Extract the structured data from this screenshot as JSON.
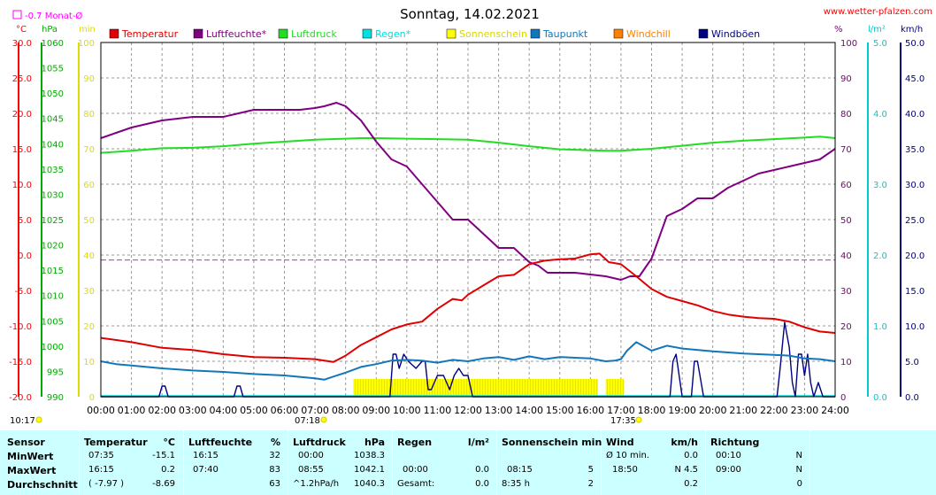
{
  "header": {
    "title": "Sonntag, 14.02.2021",
    "site": "www.wetter-pfalzen.com",
    "month_avg_label": "-0.7 Monat-Ø",
    "month_avg_value": -0.7
  },
  "axis_units": {
    "celsius": "°C",
    "hpa": "hPa",
    "min": "min",
    "percent": "%",
    "rain": "l/m²",
    "wind": "km/h"
  },
  "colors": {
    "temperature": "#e00000",
    "humidity": "#800080",
    "pressure": "#22dd22",
    "rain": "#00e0e0",
    "sunshine": "#ffff00",
    "dewpoint": "#1177bb",
    "windchill": "#ff8000",
    "gusts": "#000080",
    "month_avg": "#ff00ff",
    "stats_bg": "#ccffff"
  },
  "markers": {
    "sunrise": "07:18",
    "sunset": "17:35"
  },
  "chart_data": {
    "type": "line",
    "title": "Sonntag, 14.02.2021",
    "legend": [
      {
        "name": "Temperatur",
        "key": "temperature"
      },
      {
        "name": "Luftfeuchte*",
        "key": "humidity"
      },
      {
        "name": "Luftdruck",
        "key": "pressure"
      },
      {
        "name": "Regen*",
        "key": "rain"
      },
      {
        "name": "Sonnenschein",
        "key": "sunshine"
      },
      {
        "name": "Taupunkt",
        "key": "dewpoint"
      },
      {
        "name": "Windchill",
        "key": "windchill"
      },
      {
        "name": "Windböen",
        "key": "gusts"
      }
    ],
    "x_ticks": [
      "00:00",
      "01:00",
      "02:00",
      "03:00",
      "04:00",
      "05:00",
      "06:00",
      "07:00",
      "08:00",
      "09:00",
      "10:00",
      "11:00",
      "12:00",
      "13:00",
      "14:00",
      "15:00",
      "16:00",
      "17:00",
      "18:00",
      "19:00",
      "20:00",
      "21:00",
      "22:00",
      "23:00",
      "24:00"
    ],
    "xlim": [
      0,
      24
    ],
    "axes": {
      "temperature": {
        "ylim": [
          -20,
          30
        ],
        "ticks": [
          "30.0",
          "25.0",
          "20.0",
          "15.0",
          "10.0",
          "5.0",
          "0.0",
          "-5.0",
          "-10.0",
          "-15.0",
          "-20.0"
        ]
      },
      "pressure": {
        "ylim": [
          990,
          1060
        ],
        "ticks": [
          "1060",
          "1055",
          "1050",
          "1045",
          "1040",
          "1035",
          "1030",
          "1025",
          "1020",
          "1015",
          "1010",
          "1005",
          "1000",
          "995",
          "990"
        ]
      },
      "sunshine": {
        "ylim": [
          0,
          100
        ],
        "ticks": [
          "100",
          "90",
          "80",
          "70",
          "60",
          "50",
          "40",
          "30",
          "20",
          "10",
          "0"
        ]
      },
      "humidity": {
        "ylim": [
          0,
          100
        ],
        "ticks": [
          "100",
          "90",
          "80",
          "70",
          "60",
          "50",
          "40",
          "30",
          "20",
          "10",
          "0"
        ]
      },
      "rain": {
        "ylim": [
          0,
          5
        ],
        "ticks": [
          "5.0",
          "4.0",
          "3.0",
          "2.0",
          "1.0",
          "0.0"
        ]
      },
      "wind": {
        "ylim": [
          0,
          50
        ],
        "ticks": [
          "50.0",
          "45.0",
          "40.0",
          "35.0",
          "30.0",
          "25.0",
          "20.0",
          "15.0",
          "10.0",
          "5.0",
          "0.0"
        ]
      }
    },
    "series": [
      {
        "name": "Temperatur",
        "key": "temperature",
        "axis": "temperature",
        "x": [
          0,
          1,
          2,
          3,
          4,
          5,
          6,
          7,
          7.6,
          8,
          8.5,
          9,
          9.5,
          10,
          10.5,
          11,
          11.5,
          11.8,
          12,
          12.5,
          13,
          13.5,
          14,
          14.5,
          15,
          15.5,
          16,
          16.3,
          16.6,
          17,
          17.5,
          18,
          18.5,
          19,
          19.5,
          20,
          20.5,
          21,
          21.5,
          22,
          22.5,
          23,
          23.5,
          24
        ],
        "y": [
          -11.7,
          -12.3,
          -13.1,
          -13.4,
          -14.0,
          -14.4,
          -14.5,
          -14.7,
          -15.1,
          -14.2,
          -12.7,
          -11.6,
          -10.5,
          -9.8,
          -9.4,
          -7.6,
          -6.2,
          -6.4,
          -5.6,
          -4.3,
          -3.0,
          -2.8,
          -1.3,
          -0.8,
          -0.6,
          -0.5,
          0.1,
          0.2,
          -1.0,
          -1.3,
          -3.0,
          -4.8,
          -5.9,
          -6.5,
          -7.1,
          -7.9,
          -8.4,
          -8.7,
          -8.9,
          -9.0,
          -9.4,
          -10.2,
          -10.8,
          -11.0
        ]
      },
      {
        "name": "Luftfeuchte*",
        "key": "humidity",
        "axis": "humidity",
        "x": [
          0,
          0.5,
          1,
          1.5,
          2,
          2.5,
          3,
          3.5,
          4,
          4.5,
          5,
          5.5,
          6,
          6.5,
          7,
          7.3,
          7.7,
          8,
          8.5,
          9,
          9.5,
          10,
          10.5,
          11,
          11.5,
          12,
          12.5,
          13,
          13.5,
          14,
          14.3,
          14.6,
          15,
          15.5,
          16,
          16.5,
          17,
          17.3,
          17.6,
          18,
          18.5,
          19,
          19.5,
          20,
          20.5,
          21,
          21.5,
          22,
          22.5,
          23,
          23.5,
          24
        ],
        "y": [
          73,
          74.5,
          76,
          77,
          78,
          78.5,
          79,
          79,
          79,
          80,
          81,
          81,
          81,
          81,
          81.5,
          82,
          83,
          82,
          78,
          72,
          67,
          65,
          60,
          55,
          50,
          50,
          46,
          42,
          42,
          38,
          37,
          35,
          35,
          35,
          34.5,
          34,
          33,
          34,
          34,
          39,
          51,
          53,
          56,
          56,
          59,
          61,
          63,
          64,
          65,
          66,
          67,
          70
        ]
      },
      {
        "name": "Luftdruck",
        "key": "pressure",
        "axis": "pressure",
        "x": [
          0,
          1,
          2,
          3,
          4,
          5,
          6,
          7,
          8,
          8.5,
          9,
          10,
          11,
          12,
          13,
          14,
          15,
          16,
          16.5,
          17,
          18,
          19,
          20,
          21,
          22,
          23,
          23.5,
          24
        ],
        "y": [
          1038.2,
          1038.6,
          1039.1,
          1039.2,
          1039.5,
          1040.0,
          1040.4,
          1040.8,
          1041.0,
          1041.1,
          1041.1,
          1041.0,
          1040.9,
          1040.8,
          1040.2,
          1039.5,
          1038.9,
          1038.7,
          1038.6,
          1038.6,
          1039.0,
          1039.6,
          1040.2,
          1040.6,
          1040.9,
          1041.2,
          1041.4,
          1041.1
        ]
      },
      {
        "name": "Taupunkt",
        "key": "dewpoint",
        "axis": "temperature",
        "x": [
          0,
          0.5,
          1,
          2,
          3,
          4,
          5,
          6,
          6.5,
          7,
          7.3,
          7.5,
          8,
          8.5,
          9,
          9.5,
          10,
          10.5,
          11,
          11.5,
          12,
          12.5,
          13,
          13.5,
          14,
          14.5,
          15,
          15.5,
          16,
          16.5,
          16.8,
          17,
          17.2,
          17.5,
          18,
          18.5,
          19,
          20,
          21,
          22,
          22.5,
          23,
          23.5,
          24
        ],
        "y": [
          -15.0,
          -15.4,
          -15.6,
          -16.0,
          -16.3,
          -16.5,
          -16.8,
          -17.0,
          -17.2,
          -17.4,
          -17.6,
          -17.3,
          -16.6,
          -15.8,
          -15.4,
          -14.9,
          -14.8,
          -14.9,
          -15.2,
          -14.8,
          -15.0,
          -14.6,
          -14.4,
          -14.8,
          -14.3,
          -14.7,
          -14.4,
          -14.5,
          -14.6,
          -15.0,
          -14.9,
          -14.7,
          -13.5,
          -12.3,
          -13.5,
          -12.8,
          -13.2,
          -13.6,
          -13.9,
          -14.1,
          -14.2,
          -14.6,
          -14.7,
          -15.0
        ]
      },
      {
        "name": "Windböen",
        "key": "gusts",
        "axis": "wind",
        "x": [
          0,
          1.9,
          2,
          2.1,
          2.2,
          4.35,
          4.45,
          4.55,
          4.65,
          9.45,
          9.55,
          9.65,
          9.75,
          9.9,
          10.05,
          10.3,
          10.5,
          10.6,
          10.7,
          10.8,
          11.0,
          11.2,
          11.4,
          11.55,
          11.7,
          11.85,
          12.0,
          12.15,
          18.6,
          18.7,
          18.8,
          19.0,
          19.3,
          19.4,
          19.5,
          19.7,
          22.1,
          22.2,
          22.35,
          22.5,
          22.6,
          22.7,
          22.8,
          22.9,
          23.0,
          23.1,
          23.2,
          23.3,
          23.45,
          23.6,
          24
        ],
        "y": [
          0,
          0,
          1.5,
          1.5,
          0,
          0,
          1.5,
          1.5,
          0,
          0,
          6,
          6,
          4,
          6,
          5,
          4,
          5,
          5,
          1,
          1,
          3,
          3,
          1,
          3,
          4,
          3,
          3,
          0,
          0,
          5,
          6,
          0,
          0,
          5,
          5,
          0,
          0,
          4,
          10.5,
          7,
          2,
          0,
          6,
          6,
          3,
          6,
          2,
          0,
          2,
          0,
          0
        ]
      }
    ],
    "sunshine_intervals": [
      [
        8.25,
        16.25
      ],
      [
        16.5,
        17.08
      ]
    ],
    "sunshine_level": 5
  },
  "stats": {
    "headers": {
      "sensor": "Sensor",
      "temp": "Temperatur",
      "temp_unit": "°C",
      "hum": "Luftfeuchte",
      "hum_unit": "%",
      "press": "Luftdruck",
      "press_unit": "hPa",
      "rain": "Regen",
      "rain_unit": "l/m²",
      "sun": "Sonnenschein min",
      "wind": "Wind",
      "wind_unit": "km/h",
      "dir": "Richtung"
    },
    "rows": [
      {
        "label": "MinWert",
        "temp_time": "07:35",
        "temp_val": "-15.1",
        "hum_time": "16:15",
        "hum_val": "32",
        "press_time": "00:00",
        "press_val": "1038.3",
        "rain_time": "",
        "rain_val": "",
        "sun_time": "",
        "sun_val": "",
        "wind_time": "Ø 10 min.",
        "wind_val": "0.0",
        "dir_time": "00:10",
        "dir_val": "N"
      },
      {
        "label": "MaxWert",
        "temp_time": "16:15",
        "temp_val": "0.2",
        "hum_time": "07:40",
        "hum_val": "83",
        "press_time": "08:55",
        "press_val": "1042.1",
        "rain_time": "00:00",
        "rain_val": "0.0",
        "sun_time": "08:15",
        "sun_val": "5",
        "wind_time": "18:50",
        "wind_val": "N 4.5",
        "dir_time": "09:00",
        "dir_val": "N"
      },
      {
        "label": "Durchschnitt",
        "temp_time": "( -7.97 )",
        "temp_val": "-8.69",
        "hum_time": "",
        "hum_val": "63",
        "press_time": "^1.2hPa/h",
        "press_val": "1040.3",
        "rain_time": "Gesamt:",
        "rain_val": "0.0",
        "sun_time": "8:35 h",
        "sun_val": "2",
        "wind_time": "",
        "wind_val": "0.2",
        "dir_time": "",
        "dir_val": "0"
      }
    ]
  }
}
